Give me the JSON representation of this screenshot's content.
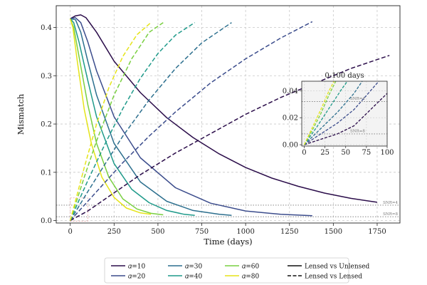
{
  "chart_data": {
    "type": "line",
    "xlabel": "Time (days)",
    "ylabel": "Mismatch",
    "xlim": [
      -80,
      1880
    ],
    "ylim": [
      -0.005,
      0.445
    ],
    "xticks": [
      0,
      250,
      500,
      750,
      1000,
      1250,
      1500,
      1750
    ],
    "yticks": [
      0.0,
      0.1,
      0.2,
      0.3,
      0.4
    ],
    "grid": true,
    "legend_position": "bottom-outside",
    "colors": {
      "a10": "#2b0d4a",
      "a20": "#3b4c8c",
      "a30": "#2c6f8e",
      "a40": "#1f9a8a",
      "a60": "#79cf40",
      "a80": "#e5e419",
      "threshold": "#999999",
      "highlight_box": "#e8a0a0"
    },
    "thresholds": [
      {
        "label": "SNR=4",
        "value": 0.032
      },
      {
        "label": "SNR=8",
        "value": 0.008
      }
    ],
    "series": [
      {
        "name": "a=10",
        "style": "solid",
        "color_key": "a10",
        "x": [
          0,
          30,
          60,
          90,
          150,
          250,
          400,
          550,
          700,
          850,
          1000,
          1150,
          1300,
          1450,
          1600,
          1750
        ],
        "y": [
          0.418,
          0.424,
          0.426,
          0.42,
          0.39,
          0.33,
          0.265,
          0.213,
          0.172,
          0.138,
          0.11,
          0.088,
          0.071,
          0.057,
          0.046,
          0.038
        ]
      },
      {
        "name": "a=20",
        "style": "solid",
        "color_key": "a20",
        "x": [
          0,
          30,
          60,
          100,
          150,
          250,
          400,
          600,
          800,
          1000,
          1200,
          1380
        ],
        "y": [
          0.418,
          0.42,
          0.41,
          0.37,
          0.31,
          0.215,
          0.13,
          0.068,
          0.036,
          0.02,
          0.013,
          0.01
        ]
      },
      {
        "name": "a=30",
        "style": "solid",
        "color_key": "a30",
        "x": [
          0,
          30,
          60,
          100,
          150,
          250,
          400,
          550,
          700,
          850,
          920
        ],
        "y": [
          0.418,
          0.416,
          0.39,
          0.33,
          0.26,
          0.16,
          0.08,
          0.04,
          0.021,
          0.013,
          0.011
        ]
      },
      {
        "name": "a=40",
        "style": "solid",
        "color_key": "a40",
        "x": [
          0,
          20,
          50,
          100,
          150,
          250,
          350,
          450,
          550,
          650,
          710
        ],
        "y": [
          0.418,
          0.41,
          0.37,
          0.29,
          0.215,
          0.118,
          0.065,
          0.037,
          0.021,
          0.013,
          0.011
        ]
      },
      {
        "name": "a=60",
        "style": "solid",
        "color_key": "a60",
        "x": [
          0,
          20,
          50,
          100,
          150,
          220,
          300,
          380,
          460,
          530
        ],
        "y": [
          0.418,
          0.4,
          0.34,
          0.24,
          0.16,
          0.09,
          0.045,
          0.024,
          0.015,
          0.012
        ]
      },
      {
        "name": "a=80",
        "style": "solid",
        "color_key": "a80",
        "x": [
          0,
          15,
          40,
          80,
          120,
          180,
          250,
          320,
          400,
          460
        ],
        "y": [
          0.418,
          0.4,
          0.33,
          0.23,
          0.16,
          0.09,
          0.048,
          0.026,
          0.016,
          0.013
        ]
      },
      {
        "name": "a=10",
        "style": "dashed",
        "color_key": "a10",
        "x": [
          0,
          50,
          100,
          200,
          300,
          400,
          600,
          800,
          1000,
          1200,
          1400,
          1600,
          1820
        ],
        "y": [
          0.0,
          0.01,
          0.02,
          0.045,
          0.07,
          0.095,
          0.14,
          0.18,
          0.22,
          0.255,
          0.285,
          0.315,
          0.342
        ]
      },
      {
        "name": "a=20",
        "style": "dashed",
        "color_key": "a20",
        "x": [
          0,
          50,
          100,
          200,
          300,
          450,
          600,
          800,
          1000,
          1200,
          1380
        ],
        "y": [
          0.0,
          0.02,
          0.04,
          0.08,
          0.12,
          0.175,
          0.225,
          0.285,
          0.335,
          0.378,
          0.412
        ]
      },
      {
        "name": "a=30",
        "style": "dashed",
        "color_key": "a30",
        "x": [
          0,
          50,
          100,
          200,
          300,
          450,
          600,
          750,
          920
        ],
        "y": [
          0.0,
          0.03,
          0.06,
          0.118,
          0.175,
          0.25,
          0.315,
          0.368,
          0.41
        ]
      },
      {
        "name": "a=40",
        "style": "dashed",
        "color_key": "a40",
        "x": [
          0,
          50,
          100,
          200,
          300,
          400,
          500,
          600,
          710
        ],
        "y": [
          0.0,
          0.042,
          0.083,
          0.16,
          0.232,
          0.295,
          0.346,
          0.384,
          0.41
        ]
      },
      {
        "name": "a=60",
        "style": "dashed",
        "color_key": "a60",
        "x": [
          0,
          40,
          80,
          150,
          250,
          350,
          450,
          530
        ],
        "y": [
          0.0,
          0.045,
          0.09,
          0.165,
          0.26,
          0.335,
          0.39,
          0.41
        ]
      },
      {
        "name": "a=80",
        "style": "dashed",
        "color_key": "a80",
        "x": [
          0,
          40,
          80,
          150,
          220,
          300,
          380,
          460
        ],
        "y": [
          0.0,
          0.055,
          0.11,
          0.2,
          0.275,
          0.34,
          0.385,
          0.41
        ]
      }
    ],
    "inset": {
      "title": "0-100 days",
      "xlim": [
        -3,
        100
      ],
      "ylim": [
        -0.001,
        0.047
      ],
      "xticks": [
        0,
        25,
        50,
        75,
        100
      ],
      "yticks": [
        0.0,
        0.02,
        0.04
      ],
      "xtick_labels": [
        "0",
        "25",
        "50",
        "75",
        "100"
      ],
      "ytick_labels": [
        "0.00",
        "0.02",
        "0.04"
      ],
      "threshold_labels": [
        "SNR=4",
        "SNR=8"
      ],
      "series": [
        {
          "color_key": "a10",
          "x": [
            0,
            20,
            40,
            60,
            80,
            100
          ],
          "y": [
            0.0,
            0.004,
            0.008,
            0.014,
            0.026,
            0.038
          ]
        },
        {
          "color_key": "a20",
          "x": [
            0,
            20,
            40,
            60,
            80,
            90
          ],
          "y": [
            0.0,
            0.008,
            0.016,
            0.026,
            0.04,
            0.047
          ]
        },
        {
          "color_key": "a30",
          "x": [
            0,
            20,
            40,
            60,
            70
          ],
          "y": [
            0.0,
            0.012,
            0.024,
            0.038,
            0.047
          ]
        },
        {
          "color_key": "a40",
          "x": [
            0,
            15,
            30,
            45,
            52
          ],
          "y": [
            0.0,
            0.013,
            0.027,
            0.041,
            0.047
          ]
        },
        {
          "color_key": "a60",
          "x": [
            0,
            10,
            20,
            30,
            38
          ],
          "y": [
            0.0,
            0.011,
            0.023,
            0.037,
            0.047
          ]
        },
        {
          "color_key": "a80",
          "x": [
            0,
            10,
            20,
            30,
            36
          ],
          "y": [
            0.0,
            0.013,
            0.026,
            0.04,
            0.047
          ]
        }
      ]
    },
    "legend": [
      {
        "label": "𝛼=10",
        "color_key": "a10",
        "style": "solid"
      },
      {
        "label": "𝛼=20",
        "color_key": "a20",
        "style": "solid"
      },
      {
        "label": "𝛼=30",
        "color_key": "a30",
        "style": "solid"
      },
      {
        "label": "𝛼=40",
        "color_key": "a40",
        "style": "solid"
      },
      {
        "label": "𝛼=60",
        "color_key": "a60",
        "style": "solid"
      },
      {
        "label": "𝛼=80",
        "color_key": "a80",
        "style": "solid"
      },
      {
        "label": "Lensed vs Unlensed",
        "color_key": "a10",
        "style": "solid",
        "black": true
      },
      {
        "label": "Lensed vs Lensed",
        "color_key": "a10",
        "style": "dashed",
        "black": true
      }
    ]
  }
}
